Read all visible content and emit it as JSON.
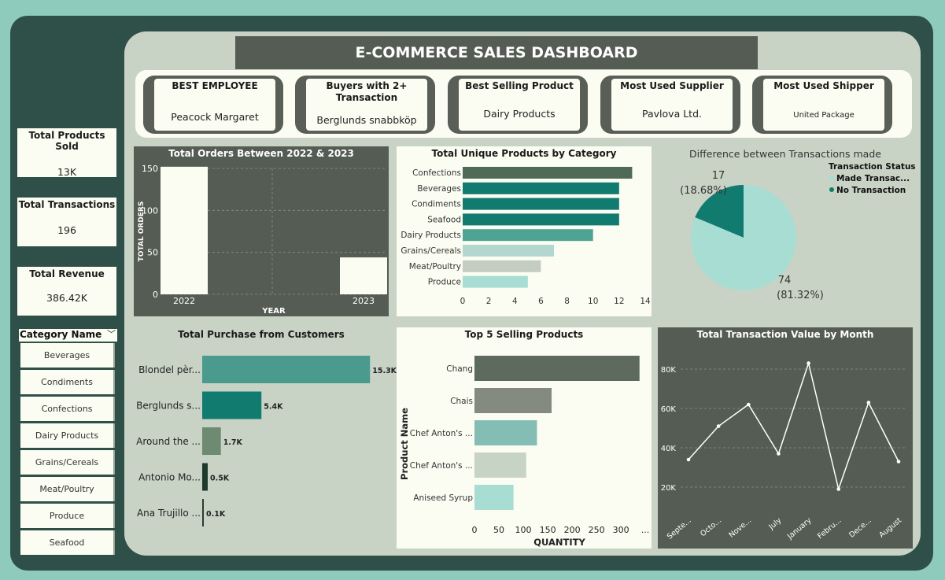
{
  "header": {
    "title": "E-COMMERCE SALES DASHBOARD"
  },
  "kpis": [
    {
      "title": "BEST EMPLOYEE",
      "value": "Peacock Margaret"
    },
    {
      "title": "Buyers with 2+ Transaction",
      "value": "Berglunds snabbköp"
    },
    {
      "title": "Best Selling Product",
      "value": "Dairy Products"
    },
    {
      "title": "Most Used Supplier",
      "value": "Pavlova  Ltd."
    },
    {
      "title": "Most Used Shipper",
      "value": "United Package"
    }
  ],
  "side": {
    "products_sold": {
      "title": "Total Products Sold",
      "value": "13K"
    },
    "transactions": {
      "title": "Total Transactions",
      "value": "196"
    },
    "revenue": {
      "title": "Total Revenue",
      "value": "386.42K"
    }
  },
  "slicer": {
    "title": "Category Name",
    "items": [
      "Beverages",
      "Condiments",
      "Confections",
      "Dairy Products",
      "Grains/Cereals",
      "Meat/Poultry",
      "Produce",
      "Seafood"
    ]
  },
  "colors": {
    "dark_panel": "#555c53",
    "teal_dark": "#127b70",
    "teal_light": "#a8ddd3",
    "cream": "#fbfdf2",
    "background": "#2f4f49"
  },
  "chart_data": [
    {
      "type": "bar",
      "title": "Total Orders Between 2022 & 2023",
      "categories": [
        "2022",
        "2023"
      ],
      "values": [
        152,
        44
      ],
      "xlabel": "YEAR",
      "ylabel": "TOTAL ORDERS",
      "ylim": [
        0,
        150
      ],
      "yticks": [
        0,
        50,
        100,
        150
      ],
      "grid": true
    },
    {
      "type": "bar",
      "orientation": "horizontal",
      "title": "Total Unique Products by Category",
      "categories": [
        "Confections",
        "Beverages",
        "Condiments",
        "Seafood",
        "Dairy Products",
        "Grains/Cereals",
        "Meat/Poultry",
        "Produce"
      ],
      "values": [
        13,
        12,
        12,
        12,
        10,
        7,
        6,
        5
      ],
      "colors": [
        "#4f6b57",
        "#127b70",
        "#127b70",
        "#127b70",
        "#4fa395",
        "#b3d6cf",
        "#c3cec0",
        "#a8ddd3"
      ],
      "xlim": [
        0,
        14
      ],
      "xticks": [
        0,
        2,
        4,
        6,
        8,
        10,
        12,
        14
      ]
    },
    {
      "type": "pie",
      "title": "Difference between Transactions made",
      "legend_title": "Transaction Status",
      "legend_position": "top-right",
      "slices": [
        {
          "name": "Made Transac...",
          "value": 74,
          "label": "74",
          "pct": "(81.32%)",
          "color": "#a8ddd3"
        },
        {
          "name": "No Transaction",
          "value": 17,
          "label": "17",
          "pct": "(18.68%)",
          "color": "#127b70"
        }
      ]
    },
    {
      "type": "bar",
      "orientation": "horizontal",
      "title": "Total Purchase from Customers",
      "categories": [
        "Blondel pèr...",
        "Berglunds s...",
        "Around the ...",
        "Antonio Mo...",
        "Ana Trujillo ..."
      ],
      "values": [
        15.3,
        5.4,
        1.7,
        0.5,
        0.1
      ],
      "labels": [
        "15.3K",
        "5.4K",
        "1.7K",
        "0.5K",
        "0.1K"
      ],
      "colors": [
        "#4a9a8e",
        "#127b70",
        "#6e8a70",
        "#1e3a2c",
        "#2c3d30"
      ],
      "xlim": [
        0,
        16
      ]
    },
    {
      "type": "bar",
      "orientation": "horizontal",
      "title": "Top 5 Selling Products",
      "categories": [
        "Chang",
        "Chais",
        "Chef Anton's ...",
        "Chef Anton's ...",
        "Aniseed Syrup"
      ],
      "values": [
        338,
        158,
        128,
        106,
        80
      ],
      "colors": [
        "#5d6a5d",
        "#858a80",
        "#84bdb4",
        "#c7d3c4",
        "#a8ddd3"
      ],
      "xlabel": "QUANTITY",
      "ylabel": "Product Name",
      "xlim": [
        0,
        340
      ],
      "xticks": [
        "0",
        "50",
        "100",
        "150",
        "200",
        "250",
        "300",
        "..."
      ]
    },
    {
      "type": "line",
      "title": "Total Transaction Value by Month",
      "categories": [
        "Septe...",
        "Octo...",
        "Nove...",
        "July",
        "January",
        "Febru...",
        "Dece...",
        "August"
      ],
      "values": [
        34,
        51,
        62,
        37,
        83,
        19,
        63,
        33
      ],
      "ylim": [
        10,
        90
      ],
      "yticks": [
        20,
        40,
        60,
        80
      ],
      "ytick_labels": [
        "20K",
        "40K",
        "60K",
        "80K"
      ],
      "grid": true
    }
  ]
}
